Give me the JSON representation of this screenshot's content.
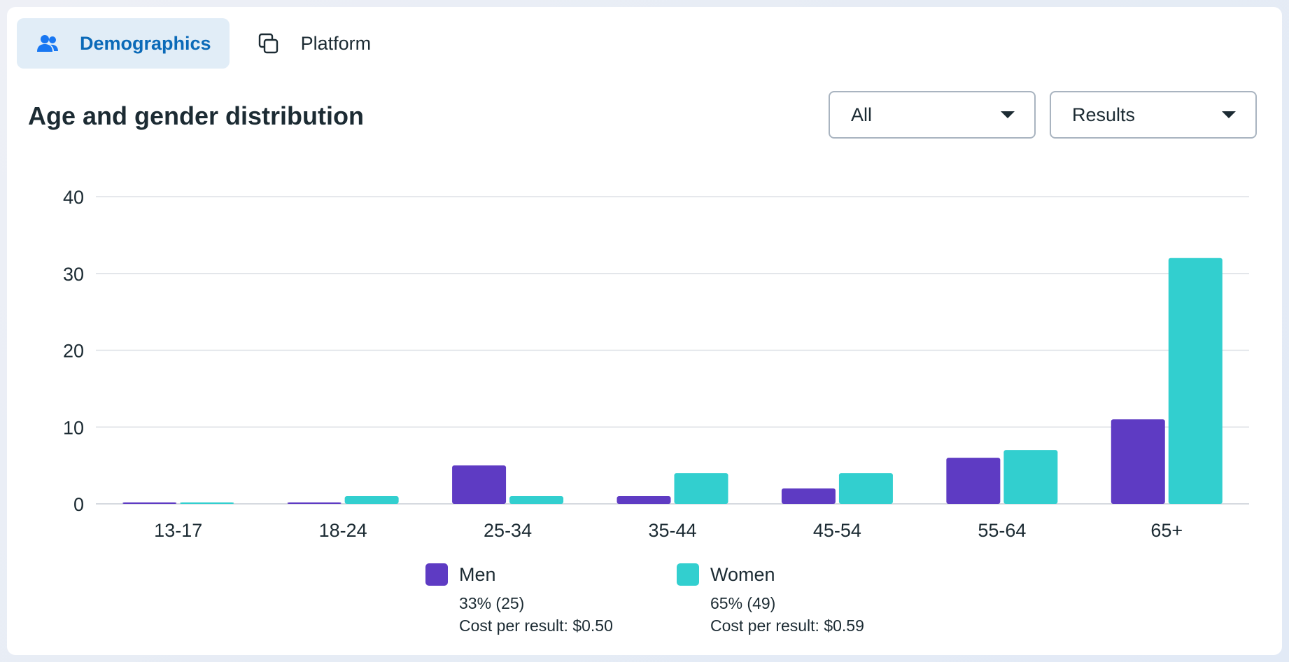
{
  "tabs": [
    {
      "label": "Demographics",
      "icon": "people-icon",
      "active": true
    },
    {
      "label": "Platform",
      "icon": "overlapping-windows-icon",
      "active": false
    }
  ],
  "header": {
    "title": "Age and gender distribution"
  },
  "filters": {
    "audience": {
      "selected": "All"
    },
    "metric": {
      "selected": "Results"
    }
  },
  "chart_data": {
    "type": "bar",
    "categories": [
      "13-17",
      "18-24",
      "25-34",
      "35-44",
      "45-54",
      "55-64",
      "65+"
    ],
    "series": [
      {
        "name": "Men",
        "color": "#5e3bc3",
        "values": [
          0,
          0,
          5,
          1,
          2,
          6,
          11
        ]
      },
      {
        "name": "Women",
        "color": "#32cfcf",
        "values": [
          0,
          1,
          1,
          4,
          4,
          7,
          32
        ]
      }
    ],
    "y_ticks": [
      "0",
      "10",
      "20",
      "30",
      "40"
    ],
    "ylim": [
      0,
      40
    ],
    "grid": true,
    "legend_position": "bottom-center"
  },
  "legend": [
    {
      "name": "Men",
      "color": "#5e3bc3",
      "share": "33% (25)",
      "cost": "Cost per result: $0.50"
    },
    {
      "name": "Women",
      "color": "#32cfcf",
      "share": "65% (49)",
      "cost": "Cost per result: $0.59"
    }
  ]
}
